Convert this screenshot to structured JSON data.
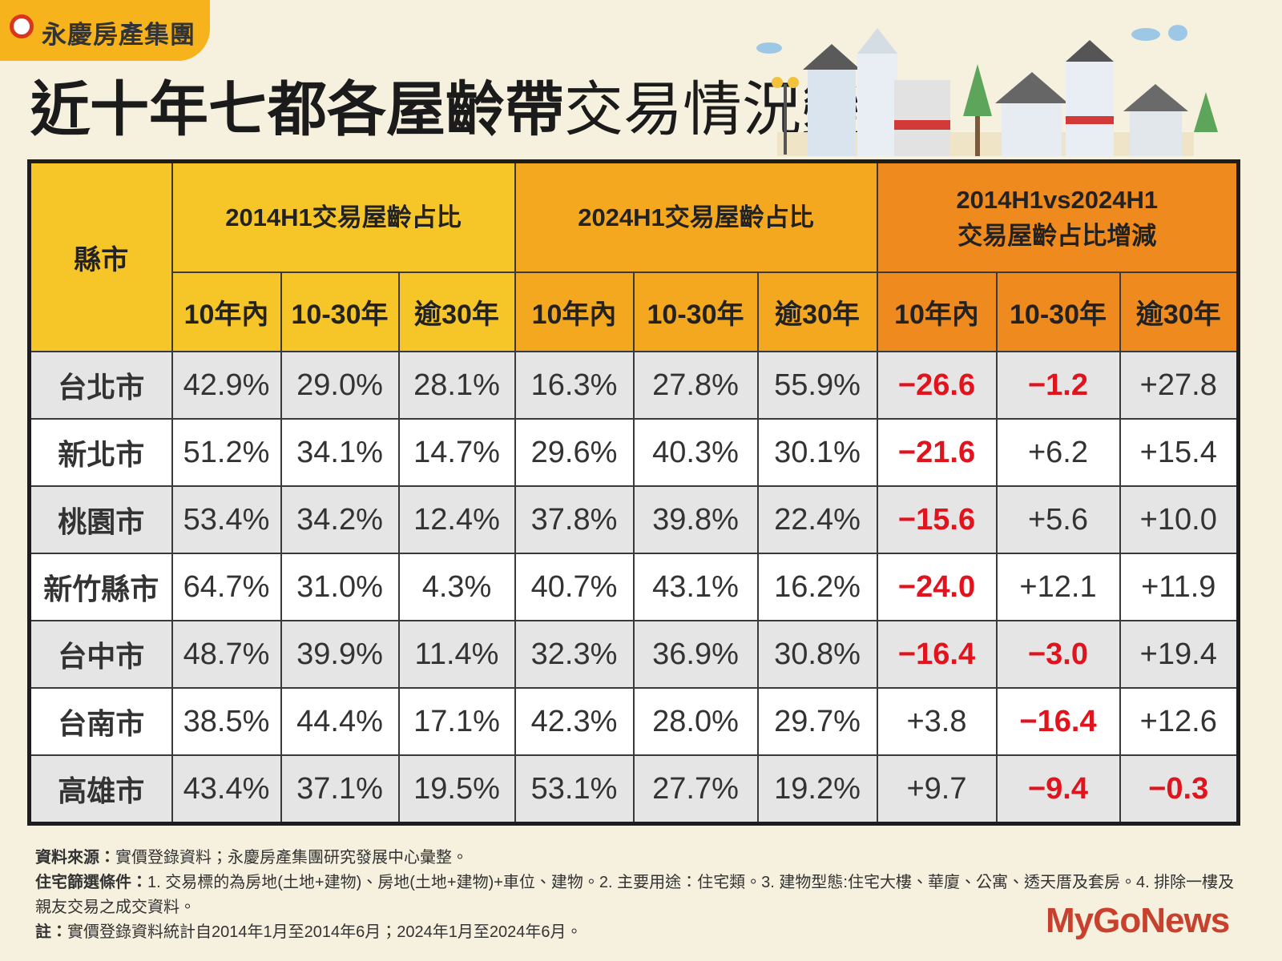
{
  "header": {
    "logo": "永慶房產集團",
    "title_bold": "近十年七都各屋齡帶",
    "title_light": "交易情況變化"
  },
  "table": {
    "corner": "縣市",
    "groups": [
      [
        "2014H1交易屋齡占比"
      ],
      [
        "2024H1交易屋齡占比"
      ],
      [
        "2014H1vs2024H1",
        "交易屋齡占比增減"
      ]
    ],
    "subheaders": [
      "10年內",
      "10-30年",
      "逾30年",
      "10年內",
      "10-30年",
      "逾30年",
      "10年內",
      "10-30年",
      "逾30年"
    ],
    "rows": [
      [
        "台北市",
        "42.9%",
        "29.0%",
        "28.1%",
        "16.3%",
        "27.8%",
        "55.9%",
        "−26.6",
        "−1.2",
        "+27.8"
      ],
      [
        "新北市",
        "51.2%",
        "34.1%",
        "14.7%",
        "29.6%",
        "40.3%",
        "30.1%",
        "−21.6",
        "+6.2",
        "+15.4"
      ],
      [
        "桃園市",
        "53.4%",
        "34.2%",
        "12.4%",
        "37.8%",
        "39.8%",
        "22.4%",
        "−15.6",
        "+5.6",
        "+10.0"
      ],
      [
        "新竹縣市",
        "64.7%",
        "31.0%",
        "4.3%",
        "40.7%",
        "43.1%",
        "16.2%",
        "−24.0",
        "+12.1",
        "+11.9"
      ],
      [
        "台中市",
        "48.7%",
        "39.9%",
        "11.4%",
        "32.3%",
        "36.9%",
        "30.8%",
        "−16.4",
        "−3.0",
        "+19.4"
      ],
      [
        "台南市",
        "38.5%",
        "44.4%",
        "17.1%",
        "42.3%",
        "28.0%",
        "29.7%",
        "+3.8",
        "−16.4",
        "+12.6"
      ],
      [
        "高雄市",
        "43.4%",
        "37.1%",
        "19.5%",
        "53.1%",
        "27.7%",
        "19.2%",
        "+9.7",
        "−9.4",
        "−0.3"
      ]
    ]
  },
  "notes": [
    {
      "label": "資料來源：",
      "text": "實價登錄資料；永慶房產集團研究發展中心彙整。"
    },
    {
      "label": "住宅篩選條件：",
      "text": "1. 交易標的為房地(土地+建物)、房地(土地+建物)+車位、建物。2. 主要用途：住宅類。3. 建物型態:住宅大樓、華廈、公寓、透天厝及套房。4. 排除一樓及親友交易之成交資料。"
    },
    {
      "label": "註：",
      "text": "實價登錄資料統計自2014年1月至2014年6月；2024年1月至2024年6月。"
    }
  ],
  "watermark": "MyGoNews"
}
